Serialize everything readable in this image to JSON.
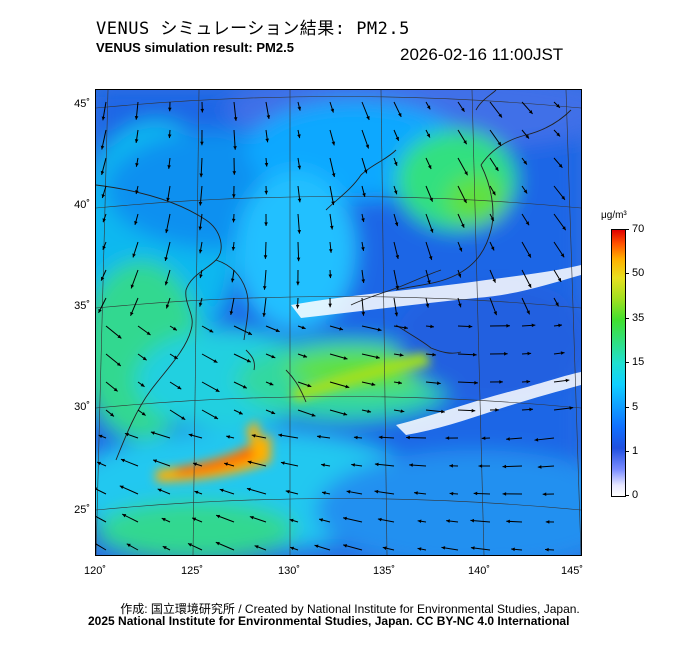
{
  "header": {
    "title_jp": "VENUS シミュレーション結果: PM2.5",
    "title_en": "VENUS simulation result: PM2.5",
    "timestamp": "2026-02-16 11:00JST"
  },
  "map": {
    "latitude_labels": [
      "45˚",
      "40˚",
      "35˚",
      "30˚",
      "25˚"
    ],
    "longitude_labels": [
      "120˚",
      "125˚",
      "130˚",
      "135˚",
      "140˚",
      "145˚"
    ]
  },
  "colorbar": {
    "unit": "μg/m³",
    "tick_labels": [
      "70",
      "50",
      "35",
      "15",
      "5",
      "1",
      "0"
    ],
    "colors": [
      "#ffffff",
      "#2050e0",
      "#10d0ff",
      "#40e030",
      "#e8e020",
      "#ff5000",
      "#e00000"
    ]
  },
  "footer": {
    "credit_line": "作成: 国立環境研究所 / Created by National Institute for Environmental Studies, Japan.",
    "copyright_line": "2025 National Institute for Environmental Studies, Japan. CC BY-NC 4.0 International"
  }
}
